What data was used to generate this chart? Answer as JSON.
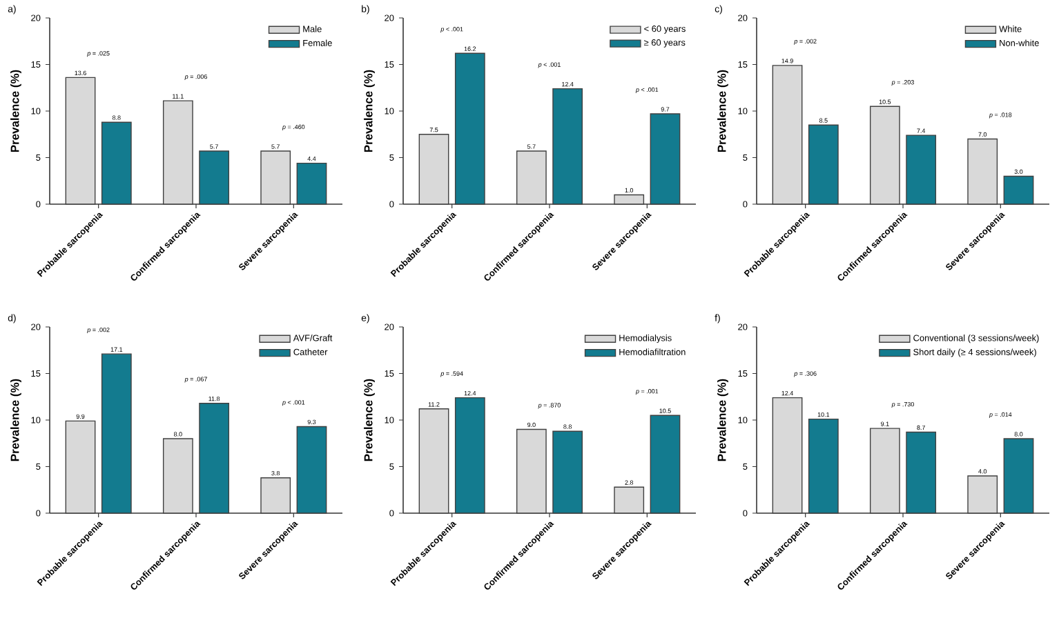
{
  "chart_data": [
    {
      "type": "bar",
      "title": "a)",
      "ylabel": "Prevalence (%)",
      "categories": [
        "Probable sarcopenia",
        "Confirmed sarcopenia",
        "Severe sarcopenia"
      ],
      "ylim": [
        0,
        20
      ],
      "yticks": [
        0,
        5,
        10,
        15,
        20
      ],
      "legend": "top right",
      "series": [
        {
          "name": "Male",
          "color": "#d9d9d9",
          "values": [
            13.6,
            11.1,
            5.7
          ],
          "value_labels": [
            "13.6",
            "11.1",
            "5.7"
          ]
        },
        {
          "name": "Female",
          "color": "#137b8f",
          "values": [
            8.8,
            5.7,
            4.4
          ],
          "value_labels": [
            "8.8",
            "5.7",
            "4.4"
          ]
        }
      ],
      "annotations": [
        "*p* = .025",
        "*p* = .006",
        "*p* = .460"
      ]
    },
    {
      "type": "bar",
      "title": "b)",
      "ylabel": "Prevalence (%)",
      "categories": [
        "Probable sarcopenia",
        "Confirmed sarcopenia",
        "Severe sarcopenia"
      ],
      "ylim": [
        0,
        20
      ],
      "yticks": [
        0,
        5,
        10,
        15,
        20
      ],
      "legend": "top right",
      "series": [
        {
          "name": "< 60 years",
          "color": "#d9d9d9",
          "values": [
            7.5,
            5.7,
            1.0
          ],
          "value_labels": [
            "7.5",
            "5.7",
            "1.0"
          ]
        },
        {
          "name": "≥ 60 years",
          "color": "#137b8f",
          "values": [
            16.2,
            12.4,
            9.7
          ],
          "value_labels": [
            "16.2",
            "12.4",
            "9.7"
          ]
        }
      ],
      "annotations": [
        "*p* < .001",
        "*p* < .001",
        "*p* < .001"
      ]
    },
    {
      "type": "bar",
      "title": "c)",
      "ylabel": "Prevalence (%)",
      "categories": [
        "Probable sarcopenia",
        "Confirmed sarcopenia",
        "Severe sarcopenia"
      ],
      "ylim": [
        0,
        20
      ],
      "yticks": [
        0,
        5,
        10,
        15,
        20
      ],
      "legend": "top right",
      "series": [
        {
          "name": "White",
          "color": "#d9d9d9",
          "values": [
            14.9,
            10.5,
            7.0
          ],
          "value_labels": [
            "14.9",
            "10.5",
            "7.0"
          ]
        },
        {
          "name": "Non-white",
          "color": "#137b8f",
          "values": [
            8.5,
            7.4,
            3.0
          ],
          "value_labels": [
            "8.5",
            "7.4",
            "3.0"
          ]
        }
      ],
      "annotations": [
        "*p* = .002",
        "*p* = .203",
        "*p* = .018"
      ]
    },
    {
      "type": "bar",
      "title": "d)",
      "ylabel": "Prevalence (%)",
      "categories": [
        "Probable sarcopenia",
        "Confirmed sarcopenia",
        "Severe sarcopenia"
      ],
      "ylim": [
        0,
        20
      ],
      "yticks": [
        0,
        5,
        10,
        15,
        20
      ],
      "legend": "top right",
      "series": [
        {
          "name": "AVF/Graft",
          "color": "#d9d9d9",
          "values": [
            9.9,
            8.0,
            3.8
          ],
          "value_labels": [
            "9.9",
            "8.0",
            "3.8"
          ]
        },
        {
          "name": "Catheter",
          "color": "#137b8f",
          "values": [
            17.1,
            11.8,
            9.3
          ],
          "value_labels": [
            "17.1",
            "11.8",
            "9.3"
          ]
        }
      ],
      "annotations": [
        "*p* = .002",
        "*p* = .067",
        "*p* < .001"
      ]
    },
    {
      "type": "bar",
      "title": "e)",
      "ylabel": "Prevalence (%)",
      "categories": [
        "Probable sarcopenia",
        "Confirmed sarcopenia",
        "Severe sarcopenia"
      ],
      "ylim": [
        0,
        20
      ],
      "yticks": [
        0,
        5,
        10,
        15,
        20
      ],
      "legend": "top right",
      "series": [
        {
          "name": "Hemodialysis",
          "color": "#d9d9d9",
          "values": [
            11.2,
            9.0,
            2.8
          ],
          "value_labels": [
            "11.2",
            "9.0",
            "2.8"
          ]
        },
        {
          "name": "Hemodiafiltration",
          "color": "#137b8f",
          "values": [
            12.4,
            8.8,
            10.5
          ],
          "value_labels": [
            "12.4",
            "8.8",
            "10.5"
          ]
        }
      ],
      "annotations": [
        "*p* = .594",
        "*p* = .870",
        "*p* = .001"
      ]
    },
    {
      "type": "bar",
      "title": "f)",
      "ylabel": "Prevalence (%)",
      "categories": [
        "Probable sarcopenia",
        "Confirmed sarcopenia",
        "Severe sarcopenia"
      ],
      "ylim": [
        0,
        20
      ],
      "yticks": [
        0,
        5,
        10,
        15,
        20
      ],
      "legend": "top right",
      "series": [
        {
          "name": "Conventional (3 sessions/week)",
          "color": "#d9d9d9",
          "values": [
            12.4,
            9.1,
            4.0
          ],
          "value_labels": [
            "12.4",
            "9.1",
            "4.0"
          ]
        },
        {
          "name": "Short daily (≥ 4 sessions/week)",
          "color": "#137b8f",
          "values": [
            10.1,
            8.7,
            8.0
          ],
          "value_labels": [
            "10.1",
            "8.7",
            "8.0"
          ]
        }
      ],
      "annotations": [
        "*p* = .306",
        "*p* = .730",
        "*p* = .014"
      ]
    }
  ]
}
